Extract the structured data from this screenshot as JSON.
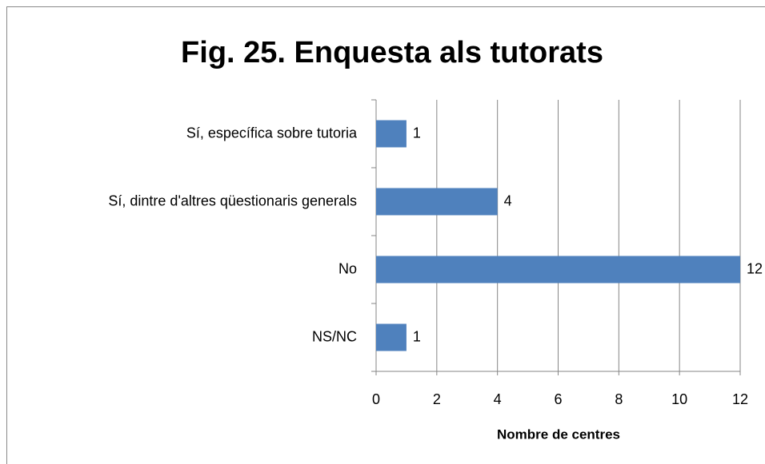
{
  "chart_data": {
    "type": "bar",
    "title": "Fig. 25. Enquesta als tutorats",
    "categories": [
      "Sí, específica sobre tutoria",
      "Sí, dintre d'altres qüestionaris generals",
      "No",
      "NS/NC"
    ],
    "values": [
      1,
      4,
      12,
      1
    ],
    "color": "#4f81bd",
    "xlabel": "Nombre de centres",
    "xlim": [
      0,
      12
    ],
    "xticks": [
      0,
      2,
      4,
      6,
      8,
      10,
      12
    ],
    "grid": true
  }
}
